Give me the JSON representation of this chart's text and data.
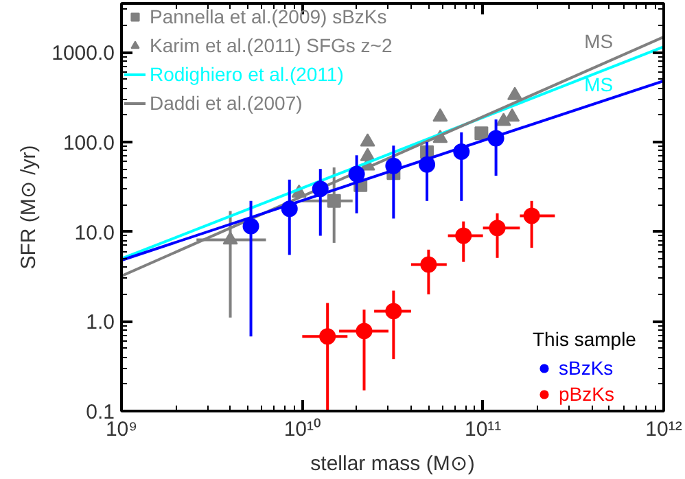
{
  "chart_data": {
    "type": "scatter",
    "xlabel": "stellar mass (M⊙)",
    "ylabel": "SFR (M⊙ /yr)",
    "log": "xy",
    "grid": false,
    "legend": "top left",
    "legend_title": "This sample",
    "xlim": [
      1000000000.0,
      1000000000000.0
    ],
    "ylim": [
      0.1,
      3500
    ],
    "xticks": [
      {
        "value": 1000000000.0,
        "label": "10⁹"
      },
      {
        "value": 10000000000.0,
        "label": "10¹⁰"
      },
      {
        "value": 100000000000.0,
        "label": "10¹¹"
      },
      {
        "value": 1000000000000.0,
        "label": "10¹²"
      }
    ],
    "yticks": [
      {
        "value": 0.1,
        "label": "0.1"
      },
      {
        "value": 1,
        "label": "1.0"
      },
      {
        "value": 10,
        "label": "10.0"
      },
      {
        "value": 100,
        "label": "100.0"
      },
      {
        "value": 1000,
        "label": "1000.0"
      }
    ],
    "annotations": [
      "MS",
      "MS"
    ],
    "series": [
      {
        "name": "Pannella et al.(2009) sBzKs",
        "marker": "square",
        "color": "#808080",
        "x": [
          15000000000.0,
          21000000000.0,
          32000000000.0,
          49000000000.0,
          98000000000.0
        ],
        "values": [
          22,
          33,
          45,
          77,
          125
        ],
        "errors": [
          [
            7.5,
            52
          ],
          null,
          null,
          null,
          null
        ],
        "xerrors": [
          [
            10000000000.0,
            19000000000.0
          ],
          null,
          null,
          null,
          null
        ]
      },
      {
        "name": "Karim et al.(2011) SFGs z~2",
        "marker": "triangle",
        "color": "#808080",
        "x": [
          4000000000.0,
          9600000000.0,
          23000000000.0,
          23000000000.0,
          23000000000.0,
          58000000000.0,
          58000000000.0,
          130000000000.0,
          145000000000.0,
          150000000000.0
        ],
        "values": [
          8.1,
          27,
          54,
          69,
          100,
          190,
          110,
          170,
          190,
          330
        ],
        "errors": [
          [
            1.1,
            17
          ],
          null,
          null,
          null,
          null,
          null,
          null,
          null,
          null,
          null
        ],
        "xerrors": [
          [
            2600000000.0,
            6300000000.0
          ],
          null,
          null,
          null,
          null,
          null,
          null,
          null,
          null,
          null
        ]
      },
      {
        "name": "Rodighiero et al.(2011)",
        "type": "line",
        "color": "#00ffff",
        "x": [
          1000000000.0,
          1000000000000.0
        ],
        "values": [
          5.0,
          1150
        ]
      },
      {
        "name": "Daddi et al.(2007)",
        "type": "line",
        "color": "#808080",
        "x": [
          1000000000.0,
          1000000000000.0
        ],
        "values": [
          3.2,
          1480
        ]
      },
      {
        "type": "line",
        "color": "#0000ff",
        "x": [
          1000000000.0,
          1000000000000.0
        ],
        "values": [
          4.8,
          480
        ]
      },
      {
        "name": "sBzKs",
        "marker": "circle",
        "color": "#0000ff",
        "x": [
          5200000000.0,
          8500000000.0,
          12600000000.0,
          20000000000.0,
          32000000000.0,
          49000000000.0,
          76000000000.0,
          118000000000.0
        ],
        "values": [
          11.5,
          18,
          30,
          44,
          54,
          56,
          78,
          110
        ],
        "errors": [
          [
            0.68,
            22
          ],
          [
            5.5,
            38
          ],
          [
            9,
            50
          ],
          [
            16,
            71
          ],
          [
            14,
            91
          ],
          [
            22,
            100
          ],
          [
            22,
            128
          ],
          [
            42,
            178
          ]
        ]
      },
      {
        "name": "pBzKs",
        "marker": "circle",
        "color": "#ff0000",
        "x": [
          13800000000.0,
          22000000000.0,
          32000000000.0,
          50000000000.0,
          78000000000.0,
          120000000000.0,
          186000000000.0
        ],
        "values": [
          0.68,
          0.78,
          1.3,
          4.3,
          9.0,
          11,
          15
        ],
        "errors": [
          [
            0.1,
            1.6
          ],
          [
            0.17,
            1.35
          ],
          [
            0.38,
            2.2
          ],
          [
            2.0,
            6.3
          ],
          [
            4.6,
            13
          ],
          [
            5.1,
            16
          ],
          [
            6.6,
            22
          ]
        ],
        "xerrors": [
          [
            10000000000.0,
            17800000000.0
          ],
          [
            16000000000.0,
            30000000000.0
          ],
          [
            25000000000.0,
            40000000000.0
          ],
          [
            40000000000.0,
            63000000000.0
          ],
          [
            64000000000.0,
            100000000000.0
          ],
          [
            100000000000.0,
            160000000000.0
          ],
          [
            160000000000.0,
            250000000000.0
          ]
        ]
      }
    ]
  }
}
